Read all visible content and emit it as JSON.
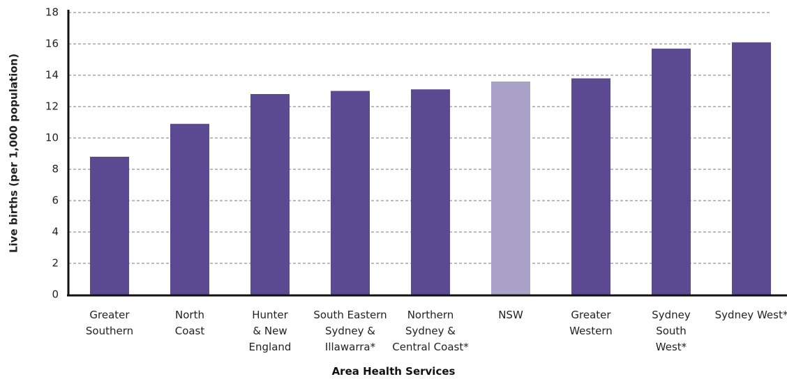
{
  "chart_data": {
    "type": "bar",
    "x_label": "Area Health Services",
    "y_label": "Live births (per 1,000 population)",
    "categories": [
      "Greater\nSouthern",
      "North\nCoast",
      "Hunter\n& New\nEngland",
      "South Eastern\nSydney &\nIllawarra*",
      "Northern\nSydney &\nCentral Coast*",
      "NSW",
      "Greater\nWestern",
      "Sydney\nSouth\nWest*",
      "Sydney West*"
    ],
    "values": [
      8.8,
      10.9,
      12.8,
      13.0,
      13.1,
      13.6,
      13.8,
      15.7,
      16.1
    ],
    "colors": [
      "#5b4a92",
      "#5b4a92",
      "#5b4a92",
      "#5b4a92",
      "#5b4a92",
      "#a9a1c8",
      "#5b4a92",
      "#5b4a92",
      "#5b4a92"
    ],
    "ylim": [
      0,
      18
    ],
    "yticks": [
      0,
      2,
      4,
      6,
      8,
      10,
      12,
      14,
      16,
      18
    ],
    "grid": true
  }
}
